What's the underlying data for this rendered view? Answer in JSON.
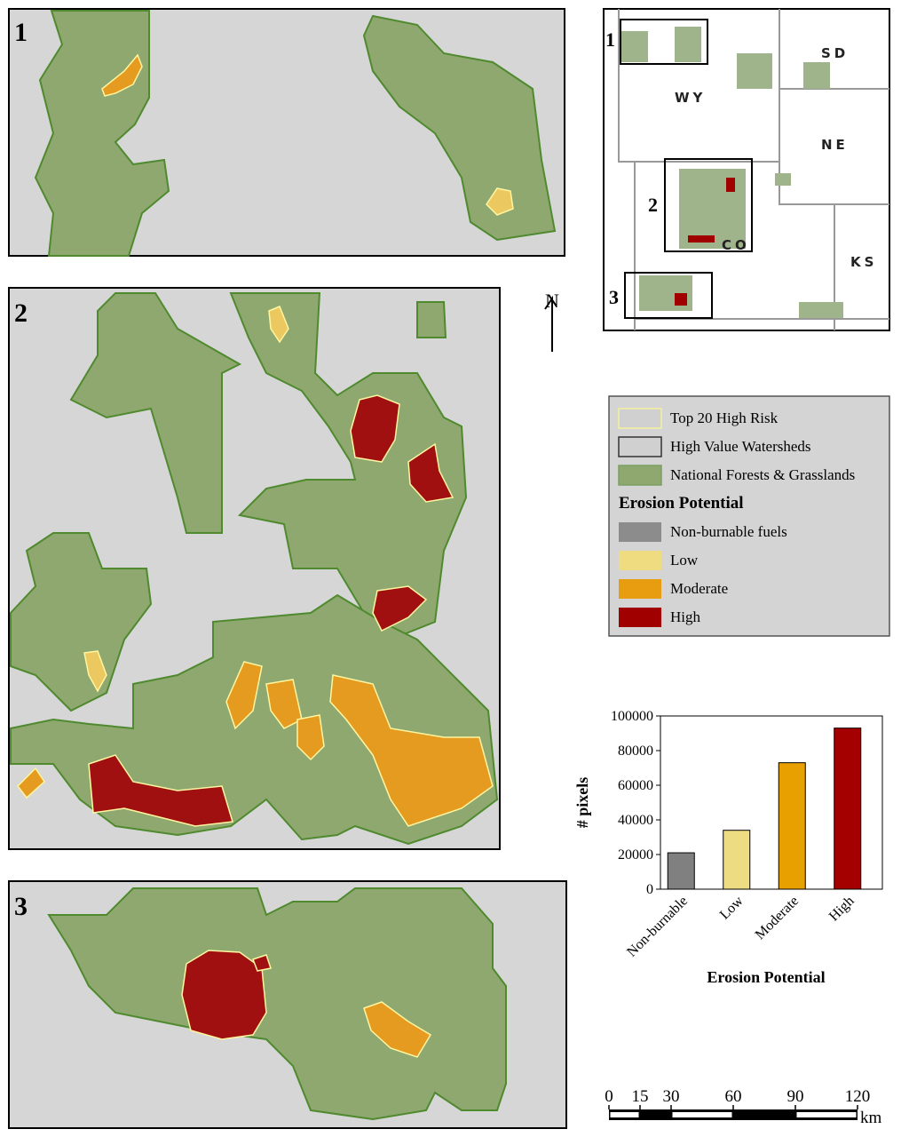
{
  "panels": [
    {
      "label": "1"
    },
    {
      "label": "2"
    },
    {
      "label": "3"
    }
  ],
  "overview": {
    "box_labels": [
      "1",
      "2",
      "3"
    ],
    "state_labels": [
      "WY",
      "SD",
      "NE",
      "CO",
      "KS"
    ]
  },
  "north_label": "N",
  "legend": {
    "items": [
      {
        "label": "Top 20 High Risk",
        "fill": "#d0d0d0",
        "stroke": "#f4f0a0"
      },
      {
        "label": "High Value Watersheds",
        "fill": "#d0d0d0",
        "stroke": "#333333"
      },
      {
        "label": "National Forests & Grasslands",
        "fill": "#8fa870",
        "stroke": "#7aa060"
      }
    ],
    "heading": "Erosion Potential",
    "classes": [
      {
        "label": "Non-burnable fuels",
        "color": "#8c8c8c"
      },
      {
        "label": "Low",
        "color": "#f0dc80"
      },
      {
        "label": "Moderate",
        "color": "#e89c10"
      },
      {
        "label": "High",
        "color": "#a00000"
      }
    ]
  },
  "chart_data": {
    "type": "bar",
    "categories": [
      "Non-burnable",
      "Low",
      "Moderate",
      "High"
    ],
    "values": [
      21000,
      34000,
      73000,
      93000
    ],
    "colors": [
      "#808080",
      "#eedc82",
      "#e8a000",
      "#a50000"
    ],
    "ylim": [
      0,
      100000
    ],
    "yticks": [
      0,
      20000,
      40000,
      60000,
      80000,
      100000
    ],
    "ylabel": "# pixels",
    "xlabel": "Erosion Potential"
  },
  "scale_bar": {
    "ticks": [
      0,
      15,
      30,
      60,
      90,
      120
    ],
    "range": [
      0,
      120
    ],
    "unit": "km"
  }
}
